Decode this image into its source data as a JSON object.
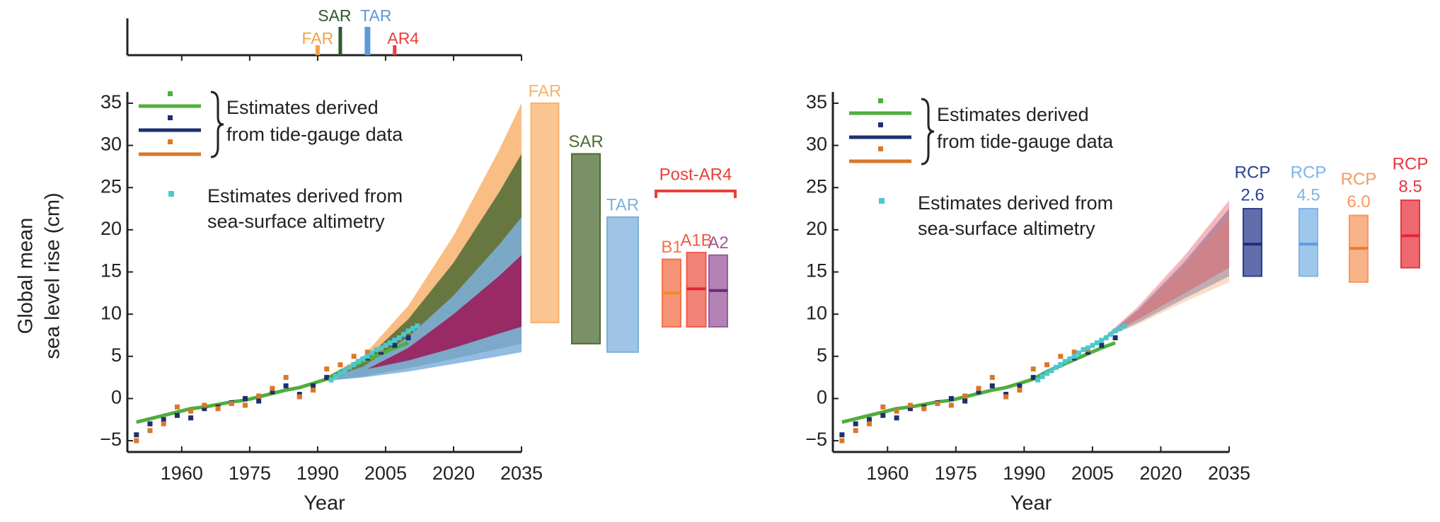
{
  "chart_data": [
    {
      "type": "timeline",
      "xlim": [
        1948,
        2035
      ],
      "xticks": [
        1960,
        1975,
        1990,
        2005,
        2020,
        2035
      ],
      "events": [
        {
          "name": "FAR",
          "x": 1990,
          "color": "#f5a04a"
        },
        {
          "name": "SAR",
          "x": 1995,
          "color": "#2e5a2e"
        },
        {
          "name": "TAR",
          "x": 2001,
          "color": "#5b9bd5"
        },
        {
          "name": "AR4",
          "x": 2007,
          "color": "#e8403a"
        }
      ]
    },
    {
      "type": "sea-level",
      "y_label": [
        "Global mean",
        "sea level rise (cm)"
      ],
      "x_label": "Year",
      "xlim": [
        1948,
        2035
      ],
      "ylim": [
        -6,
        36
      ],
      "xticks": [
        1960,
        1975,
        1990,
        2005,
        2020,
        2035
      ],
      "yticks": [
        {
          "value": -5,
          "label": "−5"
        },
        0,
        5,
        10,
        15,
        20,
        25,
        30,
        35
      ],
      "legend": [
        {
          "text": [
            "Estimates derived",
            "from tide-gauge data"
          ]
        },
        {
          "text": [
            "Estimates derived from",
            "sea-surface altimetry"
          ]
        }
      ],
      "series": [
        {
          "style": "line",
          "color": "#4fae3c",
          "x": [
            1950,
            1953,
            1956,
            1959,
            1962,
            1965,
            1968,
            1971,
            1974,
            1977,
            1980,
            1983,
            1986,
            1989,
            1992,
            1995,
            1998,
            2001,
            2004,
            2007,
            2010
          ],
          "values": [
            -2.8,
            -2.4,
            -2.0,
            -1.6,
            -1.2,
            -1.0,
            -0.7,
            -0.4,
            -0.2,
            0.2,
            0.6,
            1.0,
            1.3,
            1.8,
            2.3,
            3.2,
            3.9,
            4.6,
            5.3,
            6.0,
            6.6
          ]
        },
        {
          "style": "points",
          "color": "#1f2f6e",
          "x": [
            1950,
            1953,
            1956,
            1959,
            1962,
            1965,
            1968,
            1971,
            1974,
            1977,
            1980,
            1983,
            1986,
            1989,
            1992,
            1995,
            1998,
            2001,
            2004,
            2007,
            2010
          ],
          "values": [
            -4.3,
            -3.0,
            -2.5,
            -2.0,
            -2.3,
            -1.2,
            -1.0,
            -0.5,
            0.0,
            -0.3,
            0.8,
            1.5,
            0.5,
            1.5,
            2.5,
            3.0,
            4.0,
            4.8,
            5.5,
            6.3,
            7.2
          ]
        },
        {
          "style": "points",
          "color": "#d9782a",
          "x": [
            1950,
            1953,
            1956,
            1959,
            1962,
            1965,
            1968,
            1971,
            1974,
            1977,
            1980,
            1983,
            1986,
            1989,
            1992,
            1995,
            1998,
            2001,
            2004,
            2007,
            2010
          ],
          "values": [
            -5.0,
            -3.8,
            -3.0,
            -1.0,
            -1.5,
            -0.8,
            -1.2,
            -0.6,
            -0.8,
            0.3,
            1.2,
            2.5,
            0.2,
            1.0,
            3.5,
            4.0,
            5.0,
            5.5,
            5.8,
            null,
            null
          ]
        },
        {
          "style": "points",
          "color": "#4cc8d0",
          "x": [
            1993,
            1994,
            1995,
            1996,
            1997,
            1998,
            1999,
            2000,
            2001,
            2002,
            2003,
            2004,
            2005,
            2006,
            2007,
            2008,
            2009,
            2010,
            2011,
            2012
          ],
          "values": [
            2.2,
            2.6,
            3.0,
            3.3,
            3.7,
            4.0,
            4.4,
            4.7,
            5.0,
            5.4,
            5.8,
            6.0,
            6.3,
            6.6,
            6.9,
            7.2,
            7.6,
            8.0,
            8.3,
            8.6
          ]
        }
      ],
      "bars": [
        {
          "label": "FAR",
          "color": "#f9b16e",
          "low": 9,
          "high": 35,
          "band_x": [
            1990,
            2000,
            2010,
            2020,
            2030,
            2035
          ],
          "band_lower": [
            2,
            3,
            4.4,
            6.1,
            8,
            9
          ],
          "band_upper": [
            2,
            5,
            11,
            19.3,
            29.4,
            35
          ]
        },
        {
          "label": "SAR",
          "color": "#4d6b34",
          "low": 6.5,
          "high": 29,
          "band_x": [
            1990,
            2000,
            2010,
            2020,
            2030,
            2035
          ],
          "band_lower": [
            2,
            2.6,
            3.6,
            4.7,
            5.9,
            6.5
          ],
          "band_upper": [
            2,
            4.4,
            9.4,
            16.1,
            24.4,
            29
          ]
        },
        {
          "label": "TAR",
          "color": "#7fb0dc",
          "low": 5.5,
          "high": 21.5,
          "band_x": [
            1990,
            2000,
            2010,
            2020,
            2030,
            2035
          ],
          "band_lower": [
            2,
            2.5,
            3.2,
            4.1,
            5,
            5.5
          ],
          "band_upper": [
            2,
            3.8,
            7.3,
            12.2,
            18.2,
            21.5
          ]
        }
      ],
      "group": {
        "label": "Post-AR4",
        "color": "#e8403a",
        "band_color": "#9b1d5c",
        "band_x": [
          2001,
          2010,
          2020,
          2030,
          2035
        ],
        "band_lower": [
          3.5,
          4.5,
          6,
          7.7,
          8.5
        ],
        "band_upper": [
          3.5,
          6,
          10,
          14.5,
          17
        ],
        "bars": [
          {
            "label": "B1",
            "color": "#f2704a",
            "mid_color": "#f08a2a",
            "low": 8.5,
            "high": 16.5,
            "mid": 12.5
          },
          {
            "label": "A1B",
            "color": "#ef5a4a",
            "mid_color": "#e3263a",
            "low": 8.5,
            "high": 17.3,
            "mid": 13
          },
          {
            "label": "A2",
            "color": "#9a5a9e",
            "mid_color": "#6a2a7a",
            "low": 8.5,
            "high": 17,
            "mid": 12.8
          }
        ]
      }
    },
    {
      "type": "sea-level",
      "x_label": "Year",
      "xlim": [
        1948,
        2035
      ],
      "ylim": [
        -6,
        36
      ],
      "xticks": [
        1960,
        1975,
        1990,
        2005,
        2020,
        2035
      ],
      "yticks": [
        {
          "value": -5,
          "label": "−5"
        },
        0,
        5,
        10,
        15,
        20,
        25,
        30,
        35
      ],
      "legend": [
        {
          "text": [
            "Estimates derived",
            "from tide-gauge data"
          ]
        },
        {
          "text": [
            "Estimates derived from",
            "sea-surface altimetry"
          ]
        }
      ],
      "series": [
        {
          "style": "line",
          "color": "#4fae3c",
          "x": [
            1950,
            1953,
            1956,
            1959,
            1962,
            1965,
            1968,
            1971,
            1974,
            1977,
            1980,
            1983,
            1986,
            1989,
            1992,
            1995,
            1998,
            2001,
            2004,
            2007,
            2010
          ],
          "values": [
            -2.8,
            -2.4,
            -2.0,
            -1.6,
            -1.2,
            -1.0,
            -0.7,
            -0.4,
            -0.2,
            0.2,
            0.6,
            1.0,
            1.3,
            1.8,
            2.3,
            3.2,
            3.9,
            4.6,
            5.3,
            6.0,
            6.6
          ]
        },
        {
          "style": "points",
          "color": "#1f2f6e",
          "x": [
            1950,
            1953,
            1956,
            1959,
            1962,
            1965,
            1968,
            1971,
            1974,
            1977,
            1980,
            1983,
            1986,
            1989,
            1992,
            1995,
            1998,
            2001,
            2004,
            2007,
            2010
          ],
          "values": [
            -4.3,
            -3.0,
            -2.5,
            -2.0,
            -2.3,
            -1.2,
            -1.0,
            -0.5,
            0.0,
            -0.3,
            0.8,
            1.5,
            0.5,
            1.5,
            2.5,
            3.0,
            4.0,
            4.8,
            5.5,
            6.3,
            7.2
          ]
        },
        {
          "style": "points",
          "color": "#d9782a",
          "x": [
            1950,
            1953,
            1956,
            1959,
            1962,
            1965,
            1968,
            1971,
            1974,
            1977,
            1980,
            1983,
            1986,
            1989,
            1992,
            1995,
            1998,
            2001,
            2004,
            2007,
            2010
          ],
          "values": [
            -5.0,
            -3.8,
            -3.0,
            -1.0,
            -1.5,
            -0.8,
            -1.2,
            -0.6,
            -0.8,
            0.3,
            1.2,
            2.5,
            0.2,
            1.0,
            3.5,
            4.0,
            5.0,
            5.5,
            5.8,
            null,
            null
          ]
        },
        {
          "style": "points",
          "color": "#4cc8d0",
          "x": [
            1993,
            1994,
            1995,
            1996,
            1997,
            1998,
            1999,
            2000,
            2001,
            2002,
            2003,
            2004,
            2005,
            2006,
            2007,
            2008,
            2009,
            2010,
            2011,
            2012
          ],
          "values": [
            2.2,
            2.6,
            3.0,
            3.3,
            3.7,
            4.0,
            4.4,
            4.7,
            5.0,
            5.4,
            5.8,
            6.0,
            6.3,
            6.6,
            6.9,
            7.2,
            7.6,
            8.0,
            8.3,
            8.6
          ]
        }
      ],
      "bars": [
        {
          "label": [
            "RCP",
            "2.6"
          ],
          "color": "#2b3f8f",
          "mid_color": "#1f2f7e",
          "low": 14.5,
          "high": 22.5,
          "mid": 18.3,
          "band_x": [
            2007,
            2015,
            2025,
            2035
          ],
          "band_lower": [
            7,
            9,
            11.8,
            14.5
          ],
          "band_upper": [
            7,
            10.5,
            16,
            22.5
          ]
        },
        {
          "label": [
            "RCP",
            "4.5"
          ],
          "color": "#7fb4e6",
          "mid_color": "#5a9ee0",
          "low": 14.5,
          "high": 22.5,
          "mid": 18.3,
          "band_x": [
            2007,
            2015,
            2025,
            2035
          ],
          "band_lower": [
            7,
            9,
            11.8,
            14.5
          ],
          "band_upper": [
            7,
            10.6,
            16.2,
            22.5
          ]
        },
        {
          "label": [
            "RCP",
            "6.0"
          ],
          "color": "#f59a60",
          "mid_color": "#f07a2a",
          "low": 13.8,
          "high": 21.7,
          "mid": 17.8,
          "band_x": [
            2007,
            2015,
            2025,
            2035
          ],
          "band_lower": [
            7,
            8.8,
            11.4,
            13.8
          ],
          "band_upper": [
            7,
            10.3,
            15.6,
            21.7
          ]
        },
        {
          "label": [
            "RCP",
            "8.5"
          ],
          "color": "#e8353f",
          "mid_color": "#e3263a",
          "low": 15.5,
          "high": 23.5,
          "mid": 19.3,
          "band_x": [
            2007,
            2015,
            2025,
            2035
          ],
          "band_lower": [
            7,
            9.4,
            12.4,
            15.5
          ],
          "band_upper": [
            7,
            10.9,
            16.8,
            23.5
          ]
        }
      ]
    }
  ]
}
